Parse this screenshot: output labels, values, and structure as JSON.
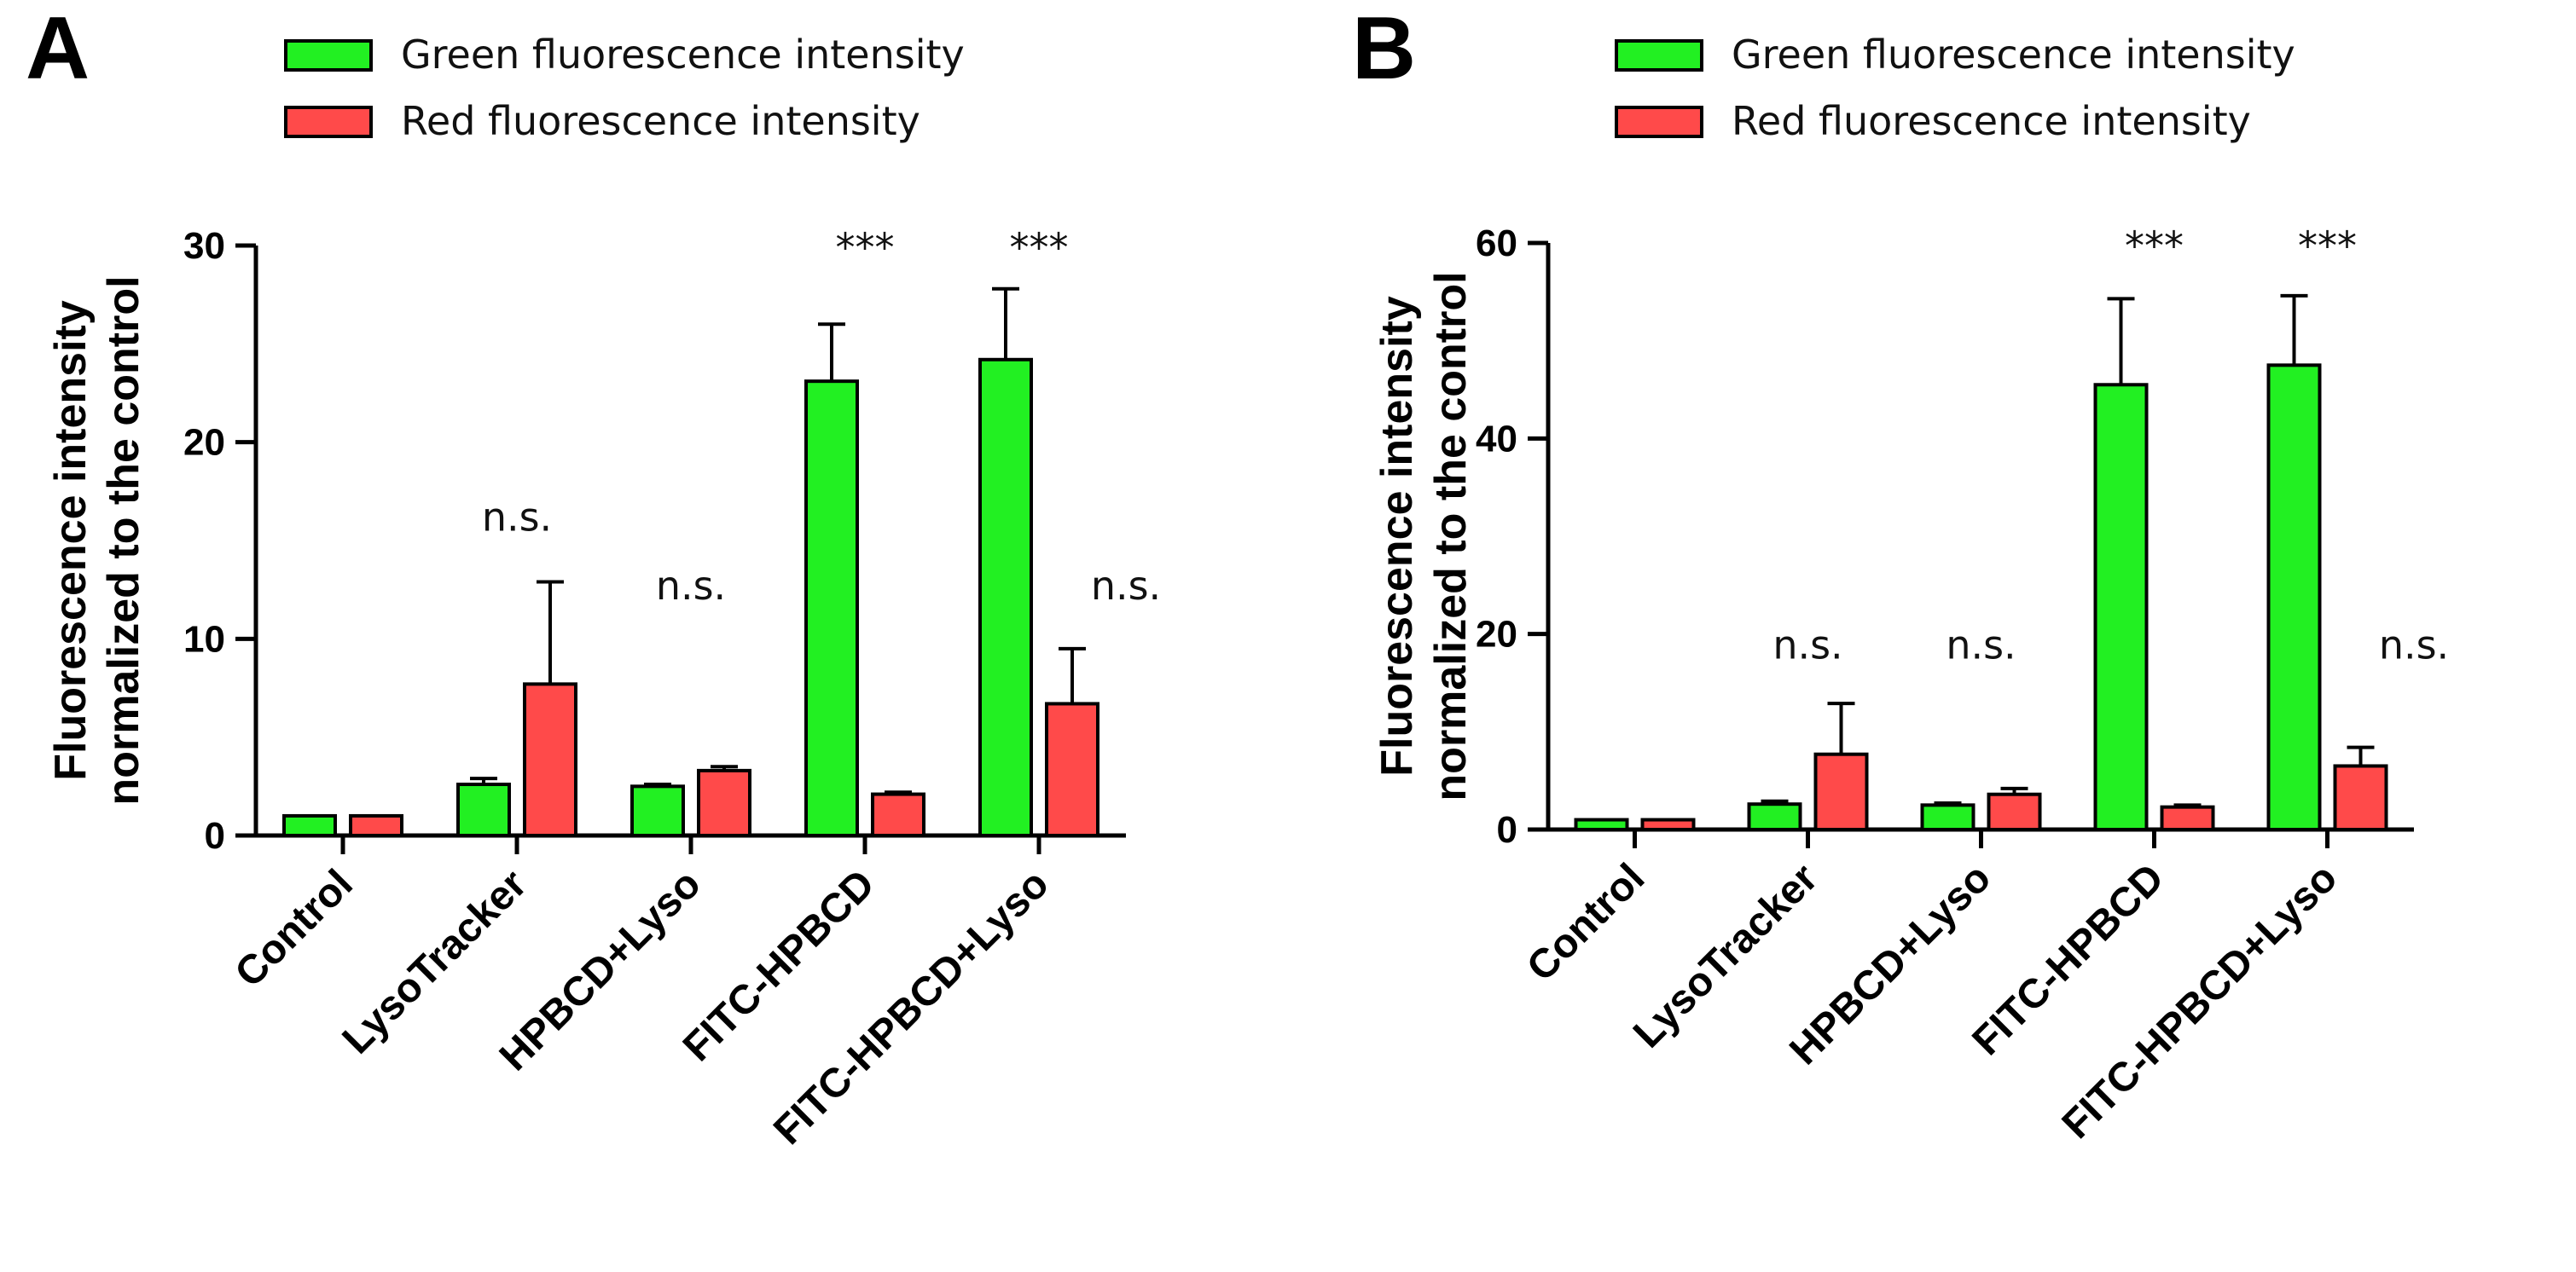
{
  "colors": {
    "green": "#22f022",
    "red": "#ff4a4a"
  },
  "chart_data": [
    {
      "panel": "A",
      "type": "bar",
      "categories": [
        "Control",
        "LysoTracker",
        "HPBCD+Lyso",
        "FITC-HPBCD",
        "FITC-HPBCD+Lyso"
      ],
      "series": [
        {
          "name": "Green fluorescence intensity",
          "color": "green",
          "values": [
            1.0,
            2.6,
            2.5,
            23.1,
            24.2
          ],
          "errors": [
            0.0,
            0.3,
            0.1,
            2.9,
            3.6
          ]
        },
        {
          "name": "Red fluorescence intensity",
          "color": "red",
          "values": [
            1.0,
            7.7,
            3.3,
            2.1,
            6.7
          ],
          "errors": [
            0.0,
            5.2,
            0.2,
            0.1,
            2.8
          ]
        }
      ],
      "annotations": [
        {
          "category": 1,
          "text": "n.s.",
          "value": 15.5
        },
        {
          "category": 2,
          "text": "n.s.",
          "value": 12.0
        },
        {
          "category": 3,
          "text": "***",
          "value": 29.2
        },
        {
          "category": 4,
          "text": "***",
          "value": 29.2
        },
        {
          "category": 4.5,
          "text": "n.s.",
          "value": 12.0
        }
      ],
      "ylabel_lines": [
        "Fluorescence intensity",
        "normalized to the control"
      ],
      "ylim": [
        0,
        30
      ],
      "yticks": [
        0,
        10,
        20,
        30
      ],
      "grid": false,
      "legend": "top"
    },
    {
      "panel": "B",
      "type": "bar",
      "categories": [
        "Control",
        "LysoTracker",
        "HPBCD+Lyso",
        "FITC-HPBCD",
        "FITC-HPBCD+Lyso"
      ],
      "series": [
        {
          "name": "Green fluorescence intensity",
          "color": "green",
          "values": [
            1.0,
            2.6,
            2.5,
            45.5,
            47.5
          ],
          "errors": [
            0.0,
            0.3,
            0.2,
            8.8,
            7.1
          ]
        },
        {
          "name": "Red fluorescence intensity",
          "color": "red",
          "values": [
            1.0,
            7.7,
            3.6,
            2.3,
            6.5
          ],
          "errors": [
            0.0,
            5.2,
            0.6,
            0.2,
            1.9
          ]
        }
      ],
      "annotations": [
        {
          "category": 1,
          "text": "n.s.",
          "value": 17.5
        },
        {
          "category": 2,
          "text": "n.s.",
          "value": 17.5
        },
        {
          "category": 3,
          "text": "***",
          "value": 58.3
        },
        {
          "category": 4,
          "text": "***",
          "value": 58.3
        },
        {
          "category": 4.5,
          "text": "n.s.",
          "value": 17.5
        }
      ],
      "ylabel_lines": [
        "Fluorescence intensity",
        "normalized to the control"
      ],
      "ylim": [
        0,
        60
      ],
      "yticks": [
        0,
        20,
        40,
        60
      ],
      "grid": false,
      "legend": "top"
    }
  ]
}
